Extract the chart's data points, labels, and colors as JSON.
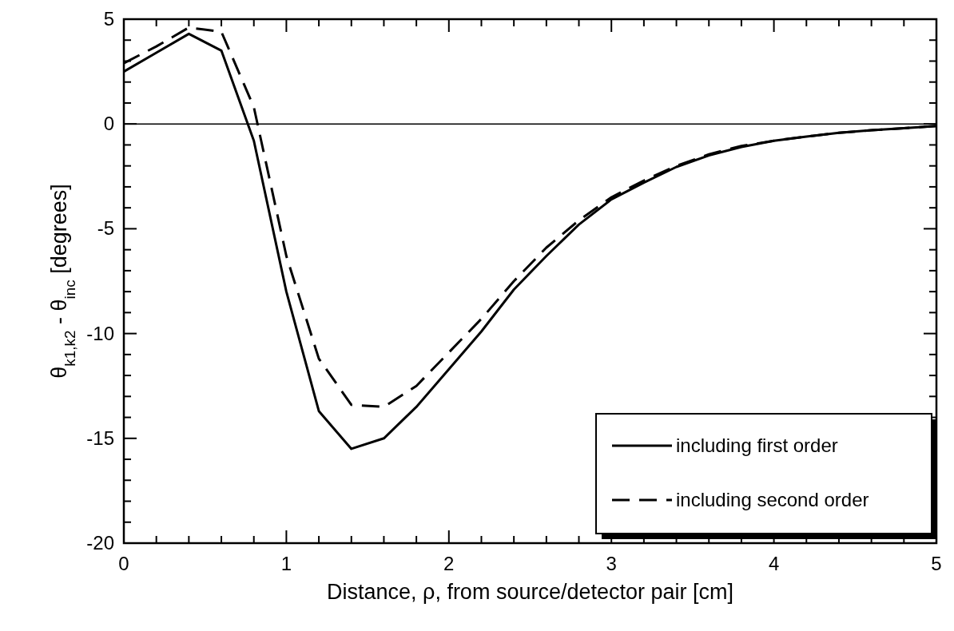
{
  "chart_data": {
    "type": "line",
    "xlabel": "Distance, ρ, from source/detector pair [cm]",
    "ylabel": "θ$_{k1,k2}$ - θ$_{inc}$ [degrees]",
    "x": [
      0,
      0.2,
      0.4,
      0.6,
      0.8,
      1.0,
      1.2,
      1.4,
      1.6,
      1.8,
      2.0,
      2.2,
      2.4,
      2.6,
      2.8,
      3.0,
      3.2,
      3.4,
      3.6,
      3.8,
      4.0,
      4.2,
      4.4,
      4.6,
      4.8,
      5.0
    ],
    "series": [
      {
        "name": "including first order",
        "color": "#000000",
        "line_style": "solid",
        "values": [
          2.5,
          3.4,
          4.3,
          3.5,
          -0.8,
          -8.0,
          -13.7,
          -15.5,
          -15.0,
          -13.5,
          -11.7,
          -9.9,
          -7.9,
          -6.3,
          -4.8,
          -3.6,
          -2.8,
          -2.05,
          -1.5,
          -1.1,
          -0.8,
          -0.6,
          -0.42,
          -0.3,
          -0.2,
          -0.1
        ]
      },
      {
        "name": "including second order",
        "color": "#000000",
        "line_style": "dashed",
        "values": [
          2.9,
          3.7,
          4.6,
          4.4,
          0.8,
          -6.3,
          -11.2,
          -13.4,
          -13.5,
          -12.5,
          -10.9,
          -9.3,
          -7.5,
          -5.9,
          -4.6,
          -3.5,
          -2.7,
          -2.0,
          -1.45,
          -1.05,
          -0.8,
          -0.6,
          -0.42,
          -0.3,
          -0.2,
          -0.1
        ]
      }
    ],
    "xlim": [
      0,
      5
    ],
    "ylim": [
      -20,
      5
    ],
    "xticks": [
      0,
      {
        "value": 0.2,
        "label": null
      },
      {
        "value": 0.4,
        "label": null
      },
      {
        "value": 0.6,
        "label": null
      },
      {
        "value": 0.8,
        "label": null
      },
      1,
      {
        "value": 1.2,
        "label": null
      },
      {
        "value": 1.4,
        "label": null
      },
      {
        "value": 1.6,
        "label": null
      },
      {
        "value": 1.8,
        "label": null
      },
      2,
      {
        "value": 2.2,
        "label": null
      },
      {
        "value": 2.4,
        "label": null
      },
      {
        "value": 2.6,
        "label": null
      },
      {
        "value": 2.8,
        "label": null
      },
      3,
      {
        "value": 3.2,
        "label": null
      },
      {
        "value": 3.4,
        "label": null
      },
      {
        "value": 3.6,
        "label": null
      },
      {
        "value": 3.8,
        "label": null
      },
      4,
      {
        "value": 4.2,
        "label": null
      },
      {
        "value": 4.4,
        "label": null
      },
      {
        "value": 4.6,
        "label": null
      },
      {
        "value": 4.8,
        "label": null
      },
      5
    ],
    "yticks": [
      -20,
      {
        "value": -19,
        "label": null
      },
      {
        "value": -18,
        "label": null
      },
      {
        "value": -17,
        "label": null
      },
      {
        "value": -16,
        "label": null
      },
      -15,
      {
        "value": -14,
        "label": null
      },
      {
        "value": -13,
        "label": null
      },
      {
        "value": -12,
        "label": null
      },
      {
        "value": -11,
        "label": null
      },
      -10,
      {
        "value": -9,
        "label": null
      },
      {
        "value": -8,
        "label": null
      },
      {
        "value": -7,
        "label": null
      },
      {
        "value": -6,
        "label": null
      },
      -5,
      {
        "value": -4,
        "label": null
      },
      {
        "value": -3,
        "label": null
      },
      {
        "value": -2,
        "label": null
      },
      {
        "value": -1,
        "label": null
      },
      0,
      {
        "value": 1,
        "label": null
      },
      {
        "value": 2,
        "label": null
      },
      {
        "value": 3,
        "label": null
      },
      {
        "value": 4,
        "label": null
      },
      5
    ],
    "ref_lines": [
      {
        "axis": "y",
        "value": 0,
        "color": "#000000"
      }
    ],
    "legend": "bottom right",
    "grid": false
  }
}
